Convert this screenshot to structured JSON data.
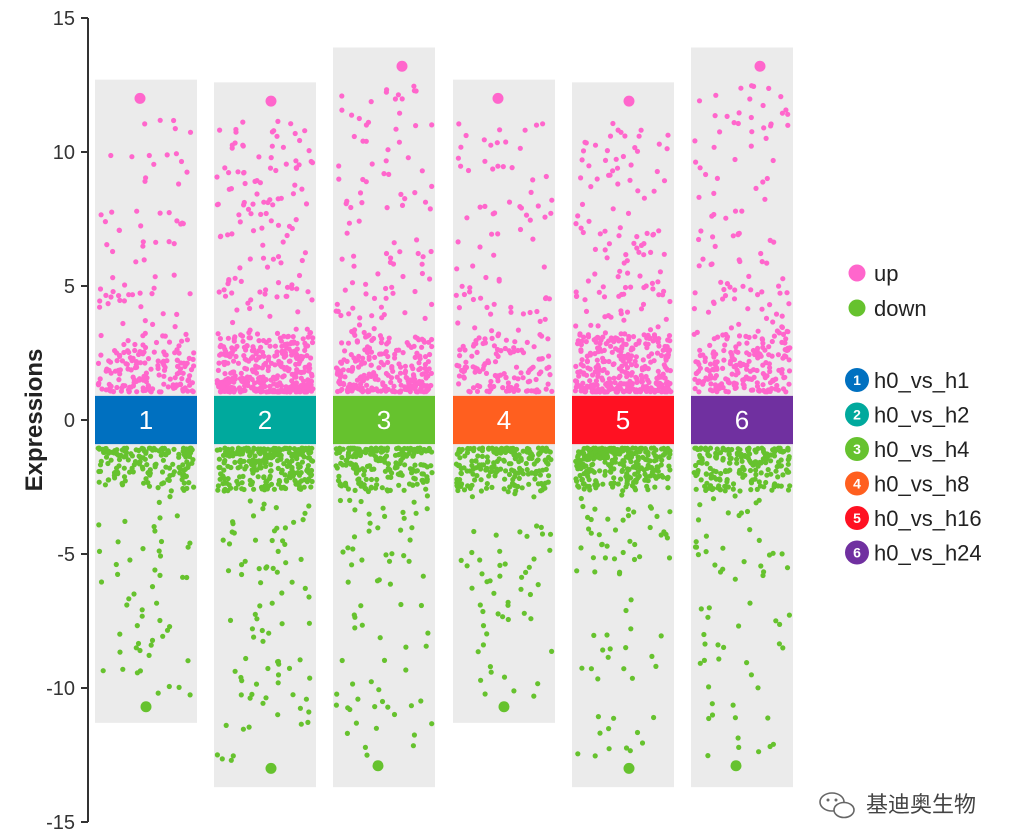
{
  "chart_data": {
    "type": "scatter",
    "ylabel": "Expressions",
    "ylim": [
      -15,
      15
    ],
    "yticks": [
      15,
      10,
      5,
      0,
      -5,
      -10,
      -15
    ],
    "grid": false,
    "legend_position": "right",
    "legend": {
      "direction": [
        {
          "name": "up",
          "color": "#FF66CC"
        },
        {
          "name": "down",
          "color": "#66C22E"
        }
      ],
      "groups": [
        {
          "badge": "1",
          "name": "h0_vs_h1"
        },
        {
          "badge": "2",
          "name": "h0_vs_h2"
        },
        {
          "badge": "3",
          "name": "h0_vs_h4"
        },
        {
          "badge": "4",
          "name": "h0_vs_h8"
        },
        {
          "badge": "5",
          "name": "h0_vs_h16"
        },
        {
          "badge": "6",
          "name": "h0_vs_h24"
        }
      ]
    },
    "groups": [
      {
        "label": "1",
        "name": "h0_vs_h1",
        "color": "#0070C0",
        "max_up": 12.0,
        "max_down": -10.7,
        "bg_range": [
          -11.3,
          12.7
        ]
      },
      {
        "label": "2",
        "name": "h0_vs_h2",
        "color": "#00A99D",
        "max_up": 11.9,
        "max_down": -13.0,
        "bg_range": [
          -13.7,
          12.6
        ]
      },
      {
        "label": "3",
        "name": "h0_vs_h4",
        "color": "#66C22E",
        "max_up": 13.2,
        "max_down": -12.9,
        "bg_range": [
          -13.7,
          13.9
        ]
      },
      {
        "label": "4",
        "name": "h0_vs_h8",
        "color": "#FF5F1F",
        "max_up": 12.0,
        "max_down": -10.7,
        "bg_range": [
          -11.3,
          12.7
        ]
      },
      {
        "label": "5",
        "name": "h0_vs_h16",
        "color": "#FF1122",
        "max_up": 11.9,
        "max_down": -13.0,
        "bg_range": [
          -13.7,
          12.6
        ]
      },
      {
        "label": "6",
        "name": "h0_vs_h24",
        "color": "#7030A0",
        "max_up": 13.2,
        "max_down": -12.9,
        "bg_range": [
          -13.7,
          13.9
        ]
      }
    ]
  },
  "watermark": "基迪奥生物"
}
